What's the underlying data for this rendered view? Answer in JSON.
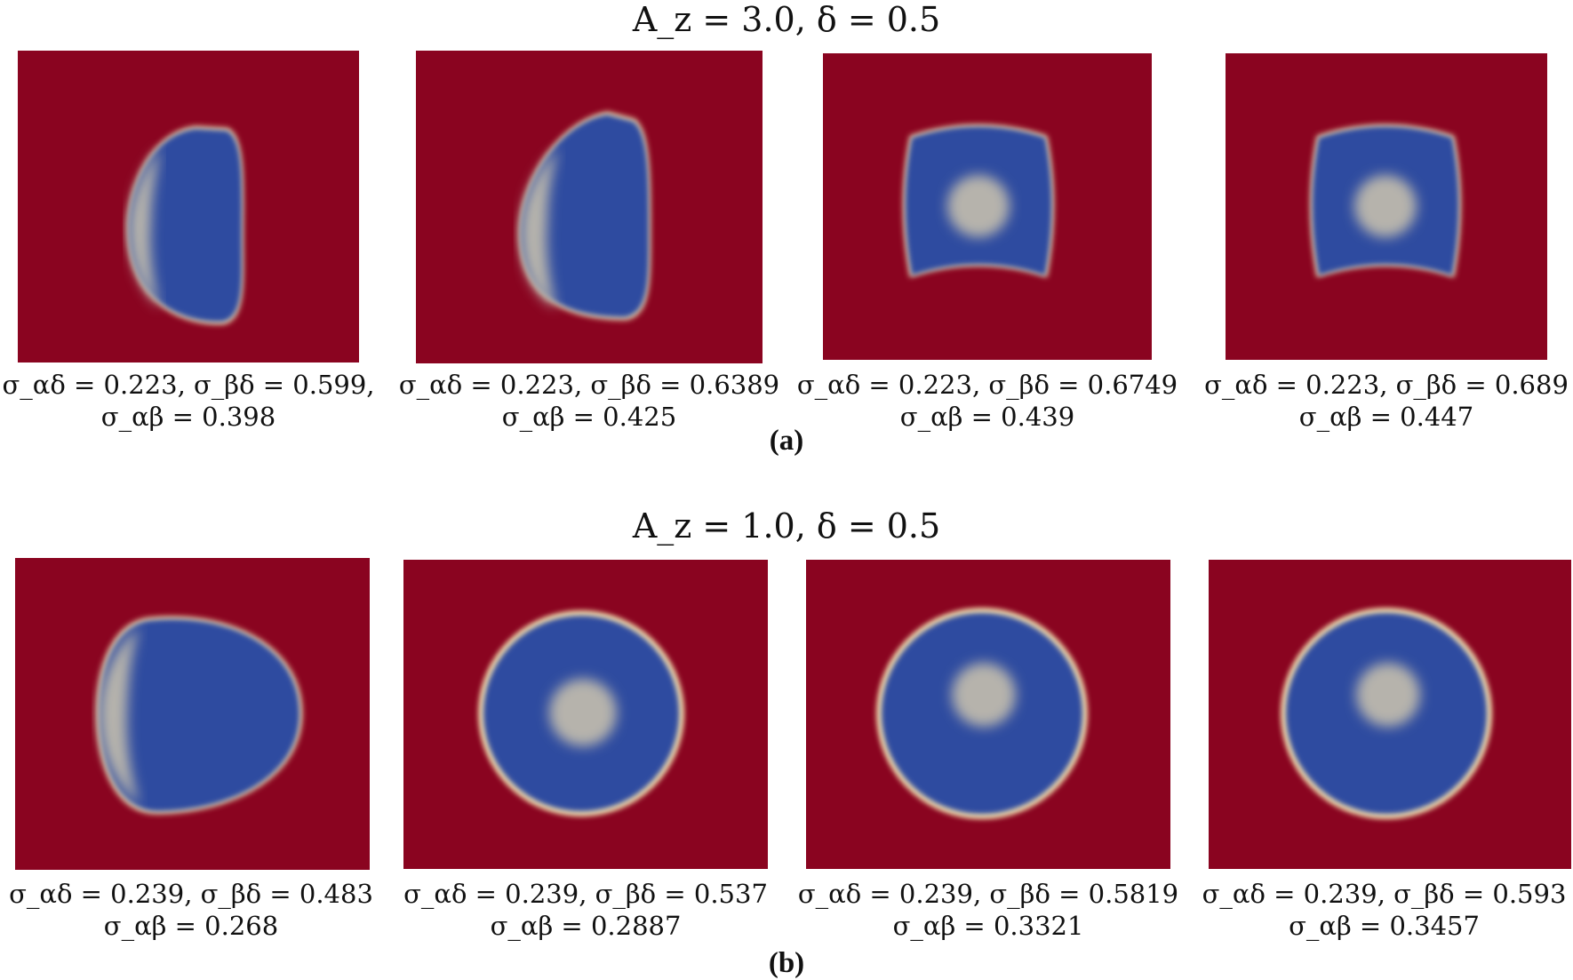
{
  "row_a": {
    "title": "A_z = 3.0, δ = 0.5",
    "label": "(a)",
    "panels": [
      {
        "line1": "σ_αδ = 0.223, σ_βδ = 0.599,",
        "line2": "σ_αβ = 0.398"
      },
      {
        "line1": "σ_αδ = 0.223, σ_βδ = 0.6389",
        "line2": "σ_αβ = 0.425"
      },
      {
        "line1": "σ_αδ = 0.223, σ_βδ = 0.6749",
        "line2": "σ_αβ = 0.439"
      },
      {
        "line1": "σ_αδ = 0.223, σ_βδ = 0.689",
        "line2": "σ_αβ = 0.447"
      }
    ]
  },
  "row_b": {
    "title": "A_z = 1.0, δ = 0.5",
    "label": "(b)",
    "panels": [
      {
        "line1": "σ_αδ = 0.239, σ_βδ = 0.483",
        "line2": "σ_αβ = 0.268"
      },
      {
        "line1": "σ_αδ = 0.239, σ_βδ = 0.537",
        "line2": "σ_αβ = 0.2887"
      },
      {
        "line1": "σ_αδ = 0.239, σ_βδ = 0.5819",
        "line2": "σ_αβ = 0.3321"
      },
      {
        "line1": "σ_αδ = 0.239, σ_βδ = 0.593",
        "line2": "σ_αβ = 0.3457"
      }
    ]
  },
  "colors": {
    "background_phase": "#8a0420",
    "outer_phase": "#2f4ba0",
    "inner_phase": "#b6b3ac",
    "interface": "#f0d7a6"
  }
}
